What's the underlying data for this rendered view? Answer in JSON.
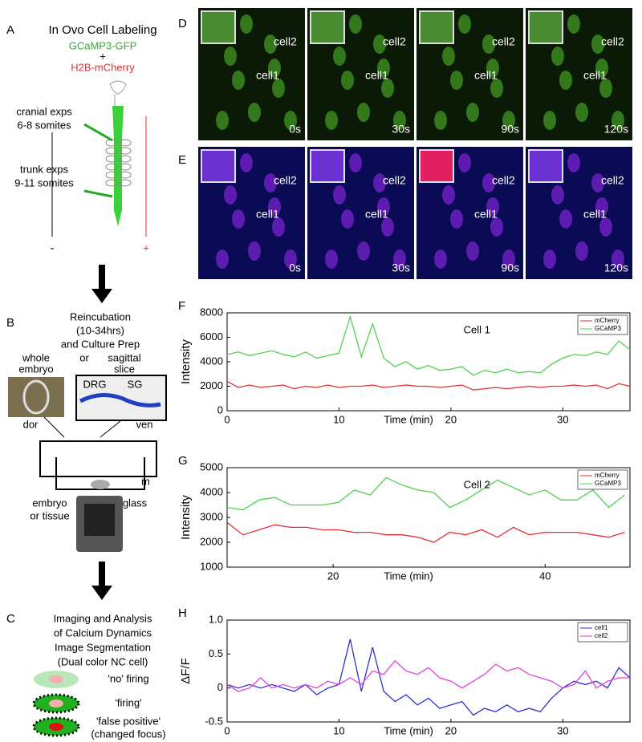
{
  "panelA": {
    "label": "A",
    "title": "In Ovo Cell Labeling",
    "reagent1": "GCaMP3-GFP",
    "plus": "+",
    "reagent2": "H2B-mCherry",
    "cranial": "cranial exps",
    "cranial_somites": "6-8 somites",
    "trunk": "trunk exps",
    "trunk_somites": "9-11 somites",
    "minus_pole": "-",
    "plus_pole": "+"
  },
  "panelB": {
    "label": "B",
    "title_lines": [
      "Reincubation",
      "(10-34hrs)",
      "and Culture Prep"
    ],
    "whole": "whole",
    "or": "or",
    "sagittal": "sagittal",
    "embryo": "embryo",
    "slice": "slice",
    "drg": "DRG",
    "sg": "SG",
    "dor": "dor",
    "ven": "ven",
    "m": "m",
    "sample": "embryo",
    "sample2": "or tissue",
    "glass": "glass"
  },
  "panelC": {
    "label": "C",
    "title_lines": [
      "Imaging and Analysis",
      "of Calcium Dynamics",
      "Image Segmentation",
      "(Dual color NC cell)"
    ],
    "no_firing": "'no' firing",
    "firing": "'firing'",
    "false_positive": "'false positive'",
    "changed_focus": "(changed focus)"
  },
  "panelD": {
    "label": "D",
    "cell1": "cell1",
    "cell2": "cell2",
    "times": [
      "0s",
      "30s",
      "90s",
      "120s"
    ]
  },
  "panelE": {
    "label": "E",
    "cell1": "cell1",
    "cell2": "cell2",
    "times": [
      "0s",
      "30s",
      "90s",
      "120s"
    ]
  },
  "chart_data": [
    {
      "type": "line",
      "panel_label": "F",
      "ylabel": "Intensity",
      "xlabel": "Time (min)",
      "annotation": "Cell 1",
      "legend": "upper right",
      "x": [
        0,
        1,
        2,
        3,
        4,
        5,
        6,
        7,
        8,
        9,
        10,
        11,
        12,
        13,
        14,
        15,
        16,
        17,
        18,
        19,
        20,
        21,
        22,
        23,
        24,
        25,
        26,
        27,
        28,
        29,
        30,
        31,
        32,
        33,
        34,
        35,
        36
      ],
      "xlim": [
        0,
        36
      ],
      "ylim": [
        0,
        8000
      ],
      "xticks": [
        0,
        10,
        20,
        30
      ],
      "yticks": [
        0,
        2000,
        4000,
        6000,
        8000
      ],
      "series": [
        {
          "name": "mCherry",
          "color": "#e03030",
          "values": [
            2400,
            1900,
            2100,
            1900,
            2000,
            2100,
            1800,
            2000,
            1900,
            2100,
            1900,
            2000,
            2000,
            2100,
            1900,
            2000,
            2100,
            2000,
            2000,
            1900,
            2000,
            2100,
            1700,
            1800,
            1900,
            1800,
            1900,
            2000,
            1900,
            2000,
            2000,
            2100,
            2000,
            2100,
            1800,
            2200,
            2000
          ]
        },
        {
          "name": "GCaMP3",
          "color": "#50d050",
          "values": [
            4600,
            4800,
            4500,
            4700,
            4900,
            4600,
            4400,
            4800,
            4300,
            4500,
            4700,
            7700,
            4400,
            7100,
            4300,
            3600,
            4000,
            3400,
            3700,
            3300,
            3400,
            3600,
            2900,
            3300,
            3100,
            3400,
            3100,
            3200,
            3100,
            3800,
            4300,
            4600,
            4500,
            4800,
            4600,
            5700,
            5000
          ]
        }
      ]
    },
    {
      "type": "line",
      "panel_label": "G",
      "ylabel": "Intensity",
      "xlabel": "Time (min)",
      "annotation": "Cell 2",
      "legend": "upper right",
      "x": [
        10,
        11.5,
        13,
        14.5,
        16,
        17.5,
        19,
        20.5,
        22,
        23.5,
        25,
        26.5,
        28,
        29.5,
        31,
        32.5,
        34,
        35.5,
        37,
        38.5,
        40,
        41.5,
        43,
        44.5,
        46,
        47.5
      ],
      "xlim": [
        10,
        48
      ],
      "ylim": [
        1000,
        5000
      ],
      "xticks": [
        20,
        40
      ],
      "yticks": [
        1000,
        2000,
        3000,
        4000,
        5000
      ],
      "series": [
        {
          "name": "mCherry",
          "color": "#e03030",
          "values": [
            2800,
            2300,
            2500,
            2700,
            2600,
            2600,
            2500,
            2500,
            2400,
            2400,
            2300,
            2300,
            2200,
            2000,
            2400,
            2300,
            2500,
            2200,
            2600,
            2300,
            2400,
            2400,
            2400,
            2300,
            2200,
            2400
          ]
        },
        {
          "name": "GCaMP3",
          "color": "#50d050",
          "values": [
            3400,
            3300,
            3700,
            3800,
            3500,
            3500,
            3500,
            3600,
            4100,
            3900,
            4600,
            4300,
            4100,
            4000,
            3400,
            3700,
            4100,
            4500,
            4200,
            3900,
            4100,
            3700,
            3700,
            4100,
            3400,
            3900
          ]
        }
      ]
    },
    {
      "type": "line",
      "panel_label": "H",
      "ylabel": "ΔF/F",
      "xlabel": "Time (min)",
      "legend": "upper right",
      "x": [
        0,
        1,
        2,
        3,
        4,
        5,
        6,
        7,
        8,
        9,
        10,
        11,
        12,
        13,
        14,
        15,
        16,
        17,
        18,
        19,
        20,
        21,
        22,
        23,
        24,
        25,
        26,
        27,
        28,
        29,
        30,
        31,
        32,
        33,
        34,
        35,
        36
      ],
      "xlim": [
        0,
        36
      ],
      "ylim": [
        -0.5,
        1
      ],
      "xticks": [
        0,
        10,
        20,
        30
      ],
      "yticks": [
        -0.5,
        0,
        0.5,
        {
          "value": 1,
          "label": "1.0"
        }
      ],
      "series": [
        {
          "name": "cell1",
          "color": "#3030d0",
          "values": [
            0.05,
            0,
            0.05,
            0,
            0.05,
            0,
            -0.05,
            0.05,
            -0.1,
            0,
            0.05,
            0.72,
            -0.05,
            0.6,
            -0.05,
            -0.2,
            -0.1,
            -0.25,
            -0.15,
            -0.3,
            -0.25,
            -0.2,
            -0.4,
            -0.3,
            -0.35,
            -0.25,
            -0.35,
            -0.3,
            -0.35,
            -0.15,
            0,
            0.1,
            0.05,
            0.1,
            0,
            0.3,
            0.15
          ]
        },
        {
          "name": "cell2",
          "color": "#e040e0",
          "values": [
            0.05,
            -0.05,
            0,
            0.15,
            0,
            0.05,
            0,
            0.05,
            0,
            0.1,
            0.05,
            0.15,
            0.05,
            0.25,
            0.2,
            0.4,
            0.25,
            0.2,
            0.3,
            0.15,
            0.1,
            0,
            0.1,
            0.2,
            0.35,
            0.25,
            0.3,
            0.2,
            0.15,
            0.1,
            0,
            0.05,
            0.25,
            0,
            0.1,
            0.15,
            0.15
          ]
        }
      ]
    }
  ]
}
